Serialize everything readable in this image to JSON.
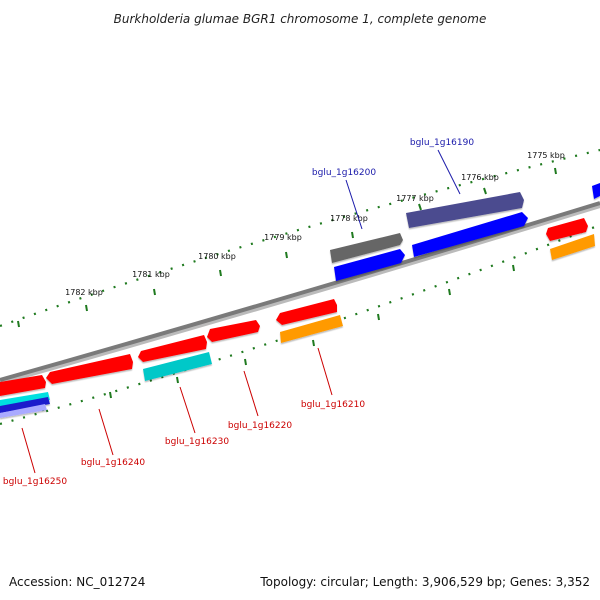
{
  "title": "Burkholderia glumae BGR1 chromosome 1, complete genome",
  "footer": {
    "accession": "Accession: NC_012724",
    "summary": "Topology: circular; Length: 3,906,529 bp; Genes: 3,352"
  },
  "colors": {
    "backbone": "#777777",
    "tick": "#1f7a1f",
    "label_forward": "#1a1aaa",
    "label_reverse": "#cc0000",
    "red": "#ff0000",
    "blue": "#0000ff",
    "dark_gray": "#666666",
    "slate": "#4b4b8f",
    "cyan": "#00c8c8",
    "orange": "#ff9a00",
    "light_blue": "#aaaaff"
  },
  "kbp_ticks": [
    {
      "label": "1775 kbp"
    },
    {
      "label": "1776 kbp"
    },
    {
      "label": "1777 kbp"
    },
    {
      "label": "1778 kbp"
    },
    {
      "label": "1779 kbp"
    },
    {
      "label": "1780 kbp"
    },
    {
      "label": "1781 kbp"
    },
    {
      "label": "1782 kbp"
    }
  ],
  "gene_labels": [
    {
      "id": "bglu_1g16190",
      "strand": "forward"
    },
    {
      "id": "bglu_1g16200",
      "strand": "forward"
    },
    {
      "id": "bglu_1g16210",
      "strand": "reverse"
    },
    {
      "id": "bglu_1g16220",
      "strand": "reverse"
    },
    {
      "id": "bglu_1g16230",
      "strand": "reverse"
    },
    {
      "id": "bglu_1g16240",
      "strand": "reverse"
    },
    {
      "id": "bglu_1g16250",
      "strand": "reverse"
    }
  ]
}
